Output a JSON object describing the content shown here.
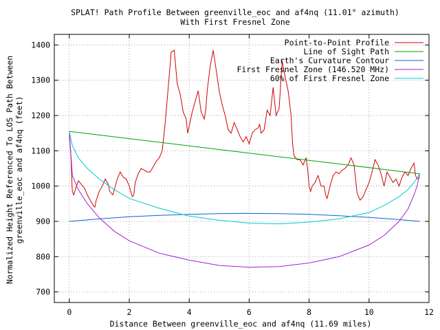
{
  "chart_data": {
    "type": "line",
    "title": "SPLAT! Path Profile Between greenville_eoc and af4nq (11.01° azimuth)",
    "subtitle": "With First Fresnel Zone",
    "xlabel": "Distance Between greenville_eoc and af4nq (11.69 miles)",
    "ylabel_line1": "Normalized Height Referenced To LOS Path Between",
    "ylabel_line2": "greenville_eoc and af4nq (feet)",
    "xlim": [
      -0.5,
      12
    ],
    "ylim": [
      670,
      1430
    ],
    "x_ticks": [
      0,
      2,
      4,
      6,
      8,
      10,
      12
    ],
    "y_ticks": [
      700,
      800,
      900,
      1000,
      1100,
      1200,
      1300,
      1400
    ],
    "grid": true,
    "legend_position": "top-right",
    "series": [
      {
        "name": "Point-to-Point Profile",
        "color": "#d00000",
        "points": [
          [
            0,
            1145
          ],
          [
            0.05,
            1090
          ],
          [
            0.1,
            985
          ],
          [
            0.15,
            975
          ],
          [
            0.2,
            990
          ],
          [
            0.3,
            1015
          ],
          [
            0.4,
            1005
          ],
          [
            0.5,
            995
          ],
          [
            0.6,
            975
          ],
          [
            0.7,
            960
          ],
          [
            0.8,
            945
          ],
          [
            0.85,
            940
          ],
          [
            0.9,
            960
          ],
          [
            1.0,
            985
          ],
          [
            1.1,
            1000
          ],
          [
            1.2,
            1020
          ],
          [
            1.3,
            1005
          ],
          [
            1.35,
            985
          ],
          [
            1.45,
            975
          ],
          [
            1.5,
            990
          ],
          [
            1.6,
            1020
          ],
          [
            1.7,
            1040
          ],
          [
            1.8,
            1025
          ],
          [
            1.9,
            1020
          ],
          [
            2.0,
            1000
          ],
          [
            2.05,
            985
          ],
          [
            2.1,
            970
          ],
          [
            2.15,
            975
          ],
          [
            2.2,
            1010
          ],
          [
            2.3,
            1035
          ],
          [
            2.4,
            1050
          ],
          [
            2.5,
            1045
          ],
          [
            2.6,
            1040
          ],
          [
            2.7,
            1040
          ],
          [
            2.8,
            1055
          ],
          [
            2.9,
            1070
          ],
          [
            3.0,
            1080
          ],
          [
            3.1,
            1100
          ],
          [
            3.2,
            1180
          ],
          [
            3.3,
            1280
          ],
          [
            3.35,
            1330
          ],
          [
            3.4,
            1380
          ],
          [
            3.5,
            1385
          ],
          [
            3.6,
            1290
          ],
          [
            3.7,
            1260
          ],
          [
            3.8,
            1210
          ],
          [
            3.9,
            1190
          ],
          [
            3.95,
            1150
          ],
          [
            4.0,
            1170
          ],
          [
            4.1,
            1210
          ],
          [
            4.2,
            1240
          ],
          [
            4.3,
            1270
          ],
          [
            4.4,
            1210
          ],
          [
            4.5,
            1190
          ],
          [
            4.55,
            1215
          ],
          [
            4.6,
            1270
          ],
          [
            4.7,
            1340
          ],
          [
            4.8,
            1385
          ],
          [
            4.9,
            1330
          ],
          [
            5.0,
            1270
          ],
          [
            5.1,
            1230
          ],
          [
            5.2,
            1200
          ],
          [
            5.3,
            1160
          ],
          [
            5.4,
            1150
          ],
          [
            5.5,
            1180
          ],
          [
            5.6,
            1160
          ],
          [
            5.7,
            1140
          ],
          [
            5.8,
            1125
          ],
          [
            5.9,
            1140
          ],
          [
            6.0,
            1120
          ],
          [
            6.1,
            1150
          ],
          [
            6.2,
            1160
          ],
          [
            6.3,
            1165
          ],
          [
            6.35,
            1175
          ],
          [
            6.4,
            1150
          ],
          [
            6.5,
            1160
          ],
          [
            6.6,
            1215
          ],
          [
            6.7,
            1200
          ],
          [
            6.8,
            1280
          ],
          [
            6.9,
            1200
          ],
          [
            7.0,
            1220
          ],
          [
            7.1,
            1355
          ],
          [
            7.2,
            1310
          ],
          [
            7.3,
            1270
          ],
          [
            7.4,
            1200
          ],
          [
            7.45,
            1120
          ],
          [
            7.5,
            1085
          ],
          [
            7.6,
            1075
          ],
          [
            7.7,
            1075
          ],
          [
            7.8,
            1060
          ],
          [
            7.9,
            1080
          ],
          [
            7.95,
            1050
          ],
          [
            8.0,
            1000
          ],
          [
            8.05,
            985
          ],
          [
            8.1,
            1000
          ],
          [
            8.2,
            1010
          ],
          [
            8.3,
            1030
          ],
          [
            8.4,
            1000
          ],
          [
            8.5,
            1000
          ],
          [
            8.55,
            975
          ],
          [
            8.6,
            965
          ],
          [
            8.7,
            1000
          ],
          [
            8.8,
            1030
          ],
          [
            8.9,
            1040
          ],
          [
            9.0,
            1035
          ],
          [
            9.1,
            1045
          ],
          [
            9.2,
            1050
          ],
          [
            9.3,
            1060
          ],
          [
            9.4,
            1080
          ],
          [
            9.5,
            1060
          ],
          [
            9.6,
            980
          ],
          [
            9.7,
            960
          ],
          [
            9.8,
            970
          ],
          [
            9.9,
            990
          ],
          [
            10.0,
            1010
          ],
          [
            10.1,
            1040
          ],
          [
            10.2,
            1075
          ],
          [
            10.3,
            1060
          ],
          [
            10.4,
            1035
          ],
          [
            10.5,
            1000
          ],
          [
            10.6,
            1040
          ],
          [
            10.7,
            1025
          ],
          [
            10.8,
            1010
          ],
          [
            10.9,
            1020
          ],
          [
            11.0,
            1000
          ],
          [
            11.1,
            1025
          ],
          [
            11.2,
            1040
          ],
          [
            11.3,
            1030
          ],
          [
            11.4,
            1050
          ],
          [
            11.5,
            1065
          ],
          [
            11.55,
            1030
          ],
          [
            11.6,
            1020
          ],
          [
            11.69,
            1025
          ]
        ]
      },
      {
        "name": "Line of Sight Path",
        "color": "#00a000",
        "points": [
          [
            0,
            1155
          ],
          [
            11.69,
            1035
          ]
        ]
      },
      {
        "name": "Earth's Curvature Contour",
        "color": "#1060d0",
        "points": [
          [
            0,
            900
          ],
          [
            1,
            907
          ],
          [
            2,
            913
          ],
          [
            3,
            917
          ],
          [
            4,
            920
          ],
          [
            5,
            922
          ],
          [
            5.85,
            923
          ],
          [
            7,
            922
          ],
          [
            8,
            920
          ],
          [
            9,
            916
          ],
          [
            10,
            911
          ],
          [
            11,
            905
          ],
          [
            11.69,
            900
          ]
        ]
      },
      {
        "name": "First Fresnel Zone (146.520 MHz)",
        "color": "#a020d0",
        "points": [
          [
            0,
            1155
          ],
          [
            0.1,
            1030
          ],
          [
            0.3,
            990
          ],
          [
            0.6,
            950
          ],
          [
            1,
            910
          ],
          [
            1.5,
            872
          ],
          [
            2,
            845
          ],
          [
            3,
            810
          ],
          [
            4,
            790
          ],
          [
            5,
            775
          ],
          [
            6,
            770
          ],
          [
            7,
            772
          ],
          [
            8,
            782
          ],
          [
            9,
            800
          ],
          [
            10,
            833
          ],
          [
            10.5,
            860
          ],
          [
            11,
            900
          ],
          [
            11.3,
            935
          ],
          [
            11.5,
            975
          ],
          [
            11.6,
            1000
          ],
          [
            11.69,
            1035
          ]
        ]
      },
      {
        "name": "60% of First Fresnel Zone",
        "color": "#00c8d0",
        "points": [
          [
            0,
            1155
          ],
          [
            0.1,
            1115
          ],
          [
            0.3,
            1080
          ],
          [
            0.6,
            1050
          ],
          [
            1,
            1020
          ],
          [
            1.5,
            990
          ],
          [
            2,
            965
          ],
          [
            3,
            937
          ],
          [
            4,
            915
          ],
          [
            5,
            903
          ],
          [
            6,
            895
          ],
          [
            7,
            893
          ],
          [
            8,
            898
          ],
          [
            9,
            907
          ],
          [
            10,
            925
          ],
          [
            10.5,
            945
          ],
          [
            11,
            970
          ],
          [
            11.3,
            990
          ],
          [
            11.5,
            1010
          ],
          [
            11.69,
            1035
          ]
        ]
      }
    ]
  }
}
